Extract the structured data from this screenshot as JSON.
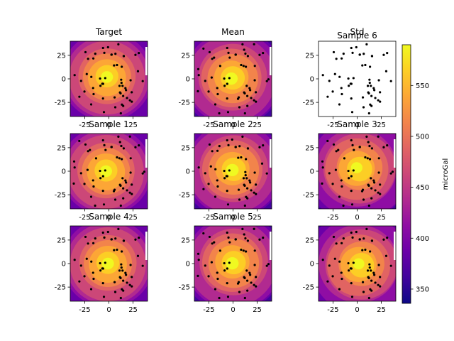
{
  "chart_data": {
    "type": "heatmap",
    "description_free": true,
    "colormap": "plasma",
    "xlim": [
      -40,
      40
    ],
    "ylim": [
      -40,
      40
    ],
    "x_ticks": [
      -25,
      0,
      25
    ],
    "y_ticks": [
      25,
      0,
      -25
    ],
    "panels": [
      {
        "title": "Target",
        "filled": true,
        "center": [
          -2,
          2
        ]
      },
      {
        "title": "Mean",
        "filled": true,
        "center": [
          -1,
          1
        ]
      },
      {
        "title": "Std",
        "filled": false,
        "overlay_title": "Sample 6"
      },
      {
        "title": "Sample 1",
        "filled": true,
        "center": [
          -3,
          0
        ]
      },
      {
        "title": "Sample 2",
        "filled": true,
        "center": [
          0,
          2
        ]
      },
      {
        "title": "Sample 3",
        "filled": true,
        "center": [
          1,
          3
        ]
      },
      {
        "title": "Sample 4",
        "filled": true,
        "center": [
          -1,
          0
        ]
      },
      {
        "title": "Sample 5",
        "filled": true,
        "center": [
          0,
          1
        ]
      },
      {
        "title": "",
        "filled": true,
        "center": [
          3,
          -1
        ]
      }
    ],
    "contour_levels": [
      350,
      375,
      400,
      425,
      450,
      475,
      500,
      525,
      550,
      575,
      590
    ],
    "colorbar": {
      "label": "microGal",
      "range": [
        336,
        590
      ],
      "ticks": [
        350,
        400,
        450,
        500,
        550
      ]
    }
  },
  "colors": {
    "plasma": [
      "#0d0887",
      "#41049d",
      "#6a00a8",
      "#8f0da4",
      "#b12a90",
      "#cc4778",
      "#e16462",
      "#f2844b",
      "#fca636",
      "#fcce25",
      "#f0f921"
    ],
    "points": "#000000"
  }
}
